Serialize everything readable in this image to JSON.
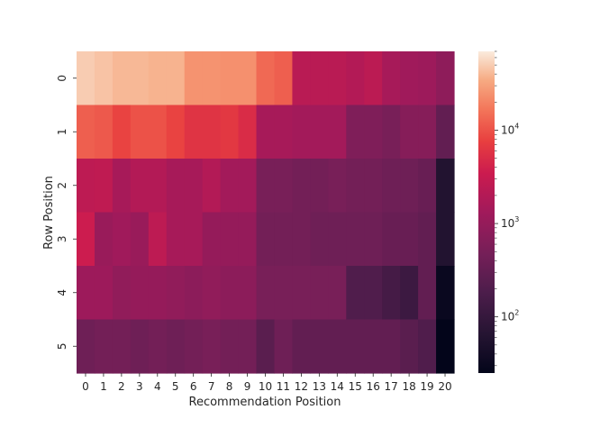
{
  "chart_data": {
    "type": "heatmap",
    "title": "",
    "xlabel": "Recommendation Position",
    "ylabel": "Row Position",
    "x_categories": [
      "0",
      "1",
      "2",
      "3",
      "4",
      "5",
      "6",
      "7",
      "8",
      "9",
      "10",
      "11",
      "12",
      "13",
      "14",
      "15",
      "16",
      "17",
      "18",
      "19",
      "20"
    ],
    "y_categories": [
      "0",
      "1",
      "2",
      "3",
      "4",
      "5"
    ],
    "values": [
      [
        50000,
        45000,
        40000,
        40000,
        38000,
        38000,
        25000,
        25000,
        24000,
        24000,
        14000,
        12000,
        2300,
        2300,
        2300,
        2000,
        2400,
        1500,
        1300,
        1200,
        850
      ],
      [
        12000,
        11000,
        8000,
        10000,
        10000,
        8000,
        6000,
        6000,
        6500,
        5000,
        1500,
        1500,
        1400,
        1400,
        1400,
        600,
        600,
        500,
        700,
        700,
        300
      ],
      [
        2500,
        2600,
        1500,
        2000,
        2000,
        1500,
        1500,
        2000,
        1400,
        1400,
        500,
        500,
        450,
        450,
        500,
        450,
        450,
        400,
        400,
        350,
        60
      ],
      [
        3500,
        1100,
        1300,
        1100,
        2500,
        1500,
        1500,
        1000,
        1000,
        1000,
        450,
        450,
        450,
        400,
        400,
        400,
        400,
        350,
        350,
        300,
        60
      ],
      [
        1200,
        1200,
        900,
        1000,
        1000,
        900,
        800,
        900,
        800,
        800,
        500,
        500,
        500,
        500,
        500,
        200,
        200,
        150,
        120,
        300,
        30
      ],
      [
        400,
        450,
        450,
        400,
        450,
        400,
        450,
        500,
        450,
        450,
        250,
        400,
        300,
        300,
        300,
        300,
        300,
        300,
        250,
        200,
        20
      ]
    ],
    "colorbar": {
      "scale": "log",
      "range": [
        25,
        70000
      ],
      "ticks": [
        {
          "value": 100,
          "base": "10",
          "exp": "2"
        },
        {
          "value": 1000,
          "base": "10",
          "exp": "3"
        },
        {
          "value": 10000,
          "base": "10",
          "exp": "4"
        }
      ],
      "colormap": "rocket"
    },
    "grid": false
  }
}
